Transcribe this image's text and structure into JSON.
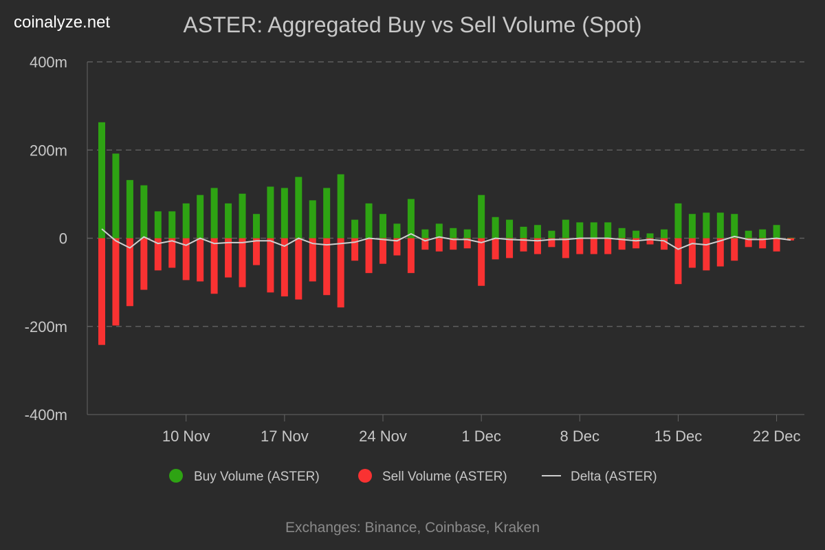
{
  "brand": "coinalyze.net",
  "chart_data": {
    "type": "bar",
    "title": "ASTER: Aggregated Buy vs Sell Volume (Spot)",
    "subtitle": "Exchanges: Binance, Coinbase, Kraken",
    "start_date": "4 Nov",
    "x_ticks": [
      "10 Nov",
      "17 Nov",
      "24 Nov",
      "1 Dec",
      "8 Dec",
      "15 Dec",
      "22 Dec"
    ],
    "y_ticks": [
      "400m",
      "200m",
      "0",
      "-200m",
      "-400m"
    ],
    "ylim": [
      -400,
      400
    ],
    "y_unit": "m",
    "grid": true,
    "legend_position": "bottom",
    "series": [
      {
        "name": "Buy Volume (ASTER)",
        "color": "#2ea313",
        "type": "bar",
        "values": [
          263,
          192,
          132,
          120,
          61,
          61,
          79,
          98,
          114,
          79,
          101,
          55,
          117,
          114,
          139,
          86,
          114,
          145,
          42,
          79,
          55,
          33,
          89,
          20,
          33,
          23,
          20,
          98,
          48,
          42,
          26,
          30,
          17,
          42,
          36,
          36,
          36,
          23,
          17,
          11,
          20,
          79,
          55,
          58,
          58,
          55,
          17,
          20,
          30,
          1
        ]
      },
      {
        "name": "Sell Volume (ASTER)",
        "color": "#f93232",
        "type": "bar",
        "values": [
          -242,
          -198,
          -154,
          -117,
          -73,
          -67,
          -95,
          -98,
          -126,
          -89,
          -111,
          -61,
          -123,
          -132,
          -139,
          -98,
          -129,
          -157,
          -51,
          -79,
          -58,
          -39,
          -79,
          -26,
          -30,
          -26,
          -23,
          -108,
          -48,
          -45,
          -30,
          -36,
          -20,
          -45,
          -36,
          -36,
          -36,
          -26,
          -23,
          -14,
          -26,
          -104,
          -67,
          -73,
          -64,
          -51,
          -20,
          -23,
          -30,
          -5
        ]
      },
      {
        "name": "Delta (ASTER)",
        "color": "#d0d0d0",
        "type": "line",
        "derived": "buy + sell"
      }
    ]
  }
}
